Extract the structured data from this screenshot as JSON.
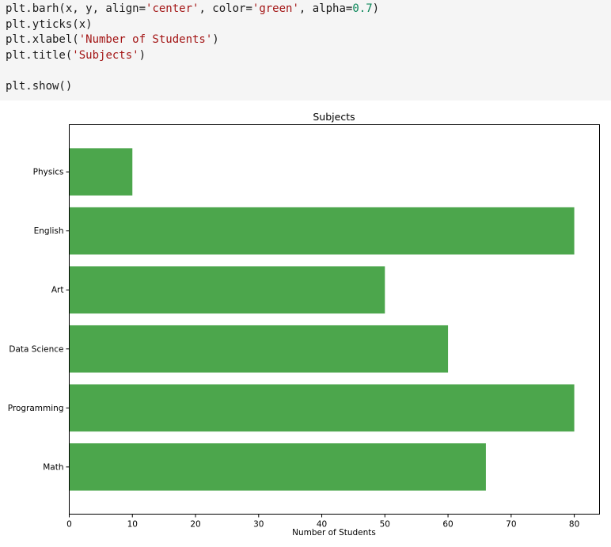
{
  "code_cell": {
    "lines": [
      [
        {
          "t": "plt.barh(x, y, align="
        },
        {
          "t": "'center'",
          "c": "str"
        },
        {
          "t": ", color="
        },
        {
          "t": "'green'",
          "c": "str"
        },
        {
          "t": ", alpha="
        },
        {
          "t": "0.7",
          "c": "num"
        },
        {
          "t": ")"
        }
      ],
      [
        {
          "t": "plt.yticks(x)"
        }
      ],
      [
        {
          "t": "plt.xlabel("
        },
        {
          "t": "'Number of Students'",
          "c": "str"
        },
        {
          "t": ")"
        }
      ],
      [
        {
          "t": "plt.title("
        },
        {
          "t": "'Subjects'",
          "c": "str"
        },
        {
          "t": ")"
        }
      ],
      [
        {
          "t": ""
        }
      ],
      [
        {
          "t": "plt.show()"
        }
      ]
    ]
  },
  "chart_data": {
    "type": "bar",
    "orientation": "horizontal",
    "title": "Subjects",
    "xlabel": "Number of Students",
    "ylabel": "",
    "categories": [
      "Math",
      "Programming",
      "Data Science",
      "Art",
      "English",
      "Physics"
    ],
    "values": [
      66,
      80,
      60,
      50,
      80,
      10
    ],
    "xlim": [
      0,
      84
    ],
    "xticks": [
      0,
      10,
      20,
      30,
      40,
      50,
      60,
      70,
      80
    ],
    "bar_color": "#008000",
    "alpha": 0.7,
    "grid": false,
    "legend": "none"
  }
}
